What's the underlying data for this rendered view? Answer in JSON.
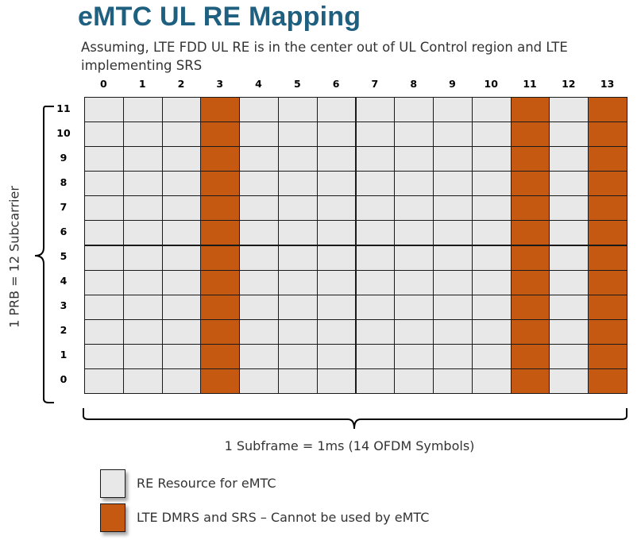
{
  "title": "eMTC UL RE Mapping",
  "subtitle": "Assuming, LTE FDD UL RE is in the center out of UL Control region and LTE implementing SRS",
  "grid": {
    "columns": [
      "0",
      "1",
      "2",
      "3",
      "4",
      "5",
      "6",
      "7",
      "8",
      "9",
      "10",
      "11",
      "12",
      "13"
    ],
    "rows": [
      "11",
      "10",
      "9",
      "8",
      "7",
      "6",
      "5",
      "4",
      "3",
      "2",
      "1",
      "0"
    ],
    "reserved_columns": [
      3,
      11,
      13
    ]
  },
  "y_axis_label": "1 PRB = 12 Subcarrier",
  "x_axis_label": "1 Subframe = 1ms (14 OFDM Symbols)",
  "legend": [
    {
      "label": "RE Resource for eMTC",
      "color": "#e8e8e8"
    },
    {
      "label": "LTE DMRS and SRS – Cannot be used by eMTC",
      "color": "#c65911"
    }
  ],
  "colors": {
    "title": "#1f5f7f",
    "free_cell": "#e8e8e8",
    "reserved_cell": "#c65911",
    "grid_line": "#1a1a1a"
  }
}
